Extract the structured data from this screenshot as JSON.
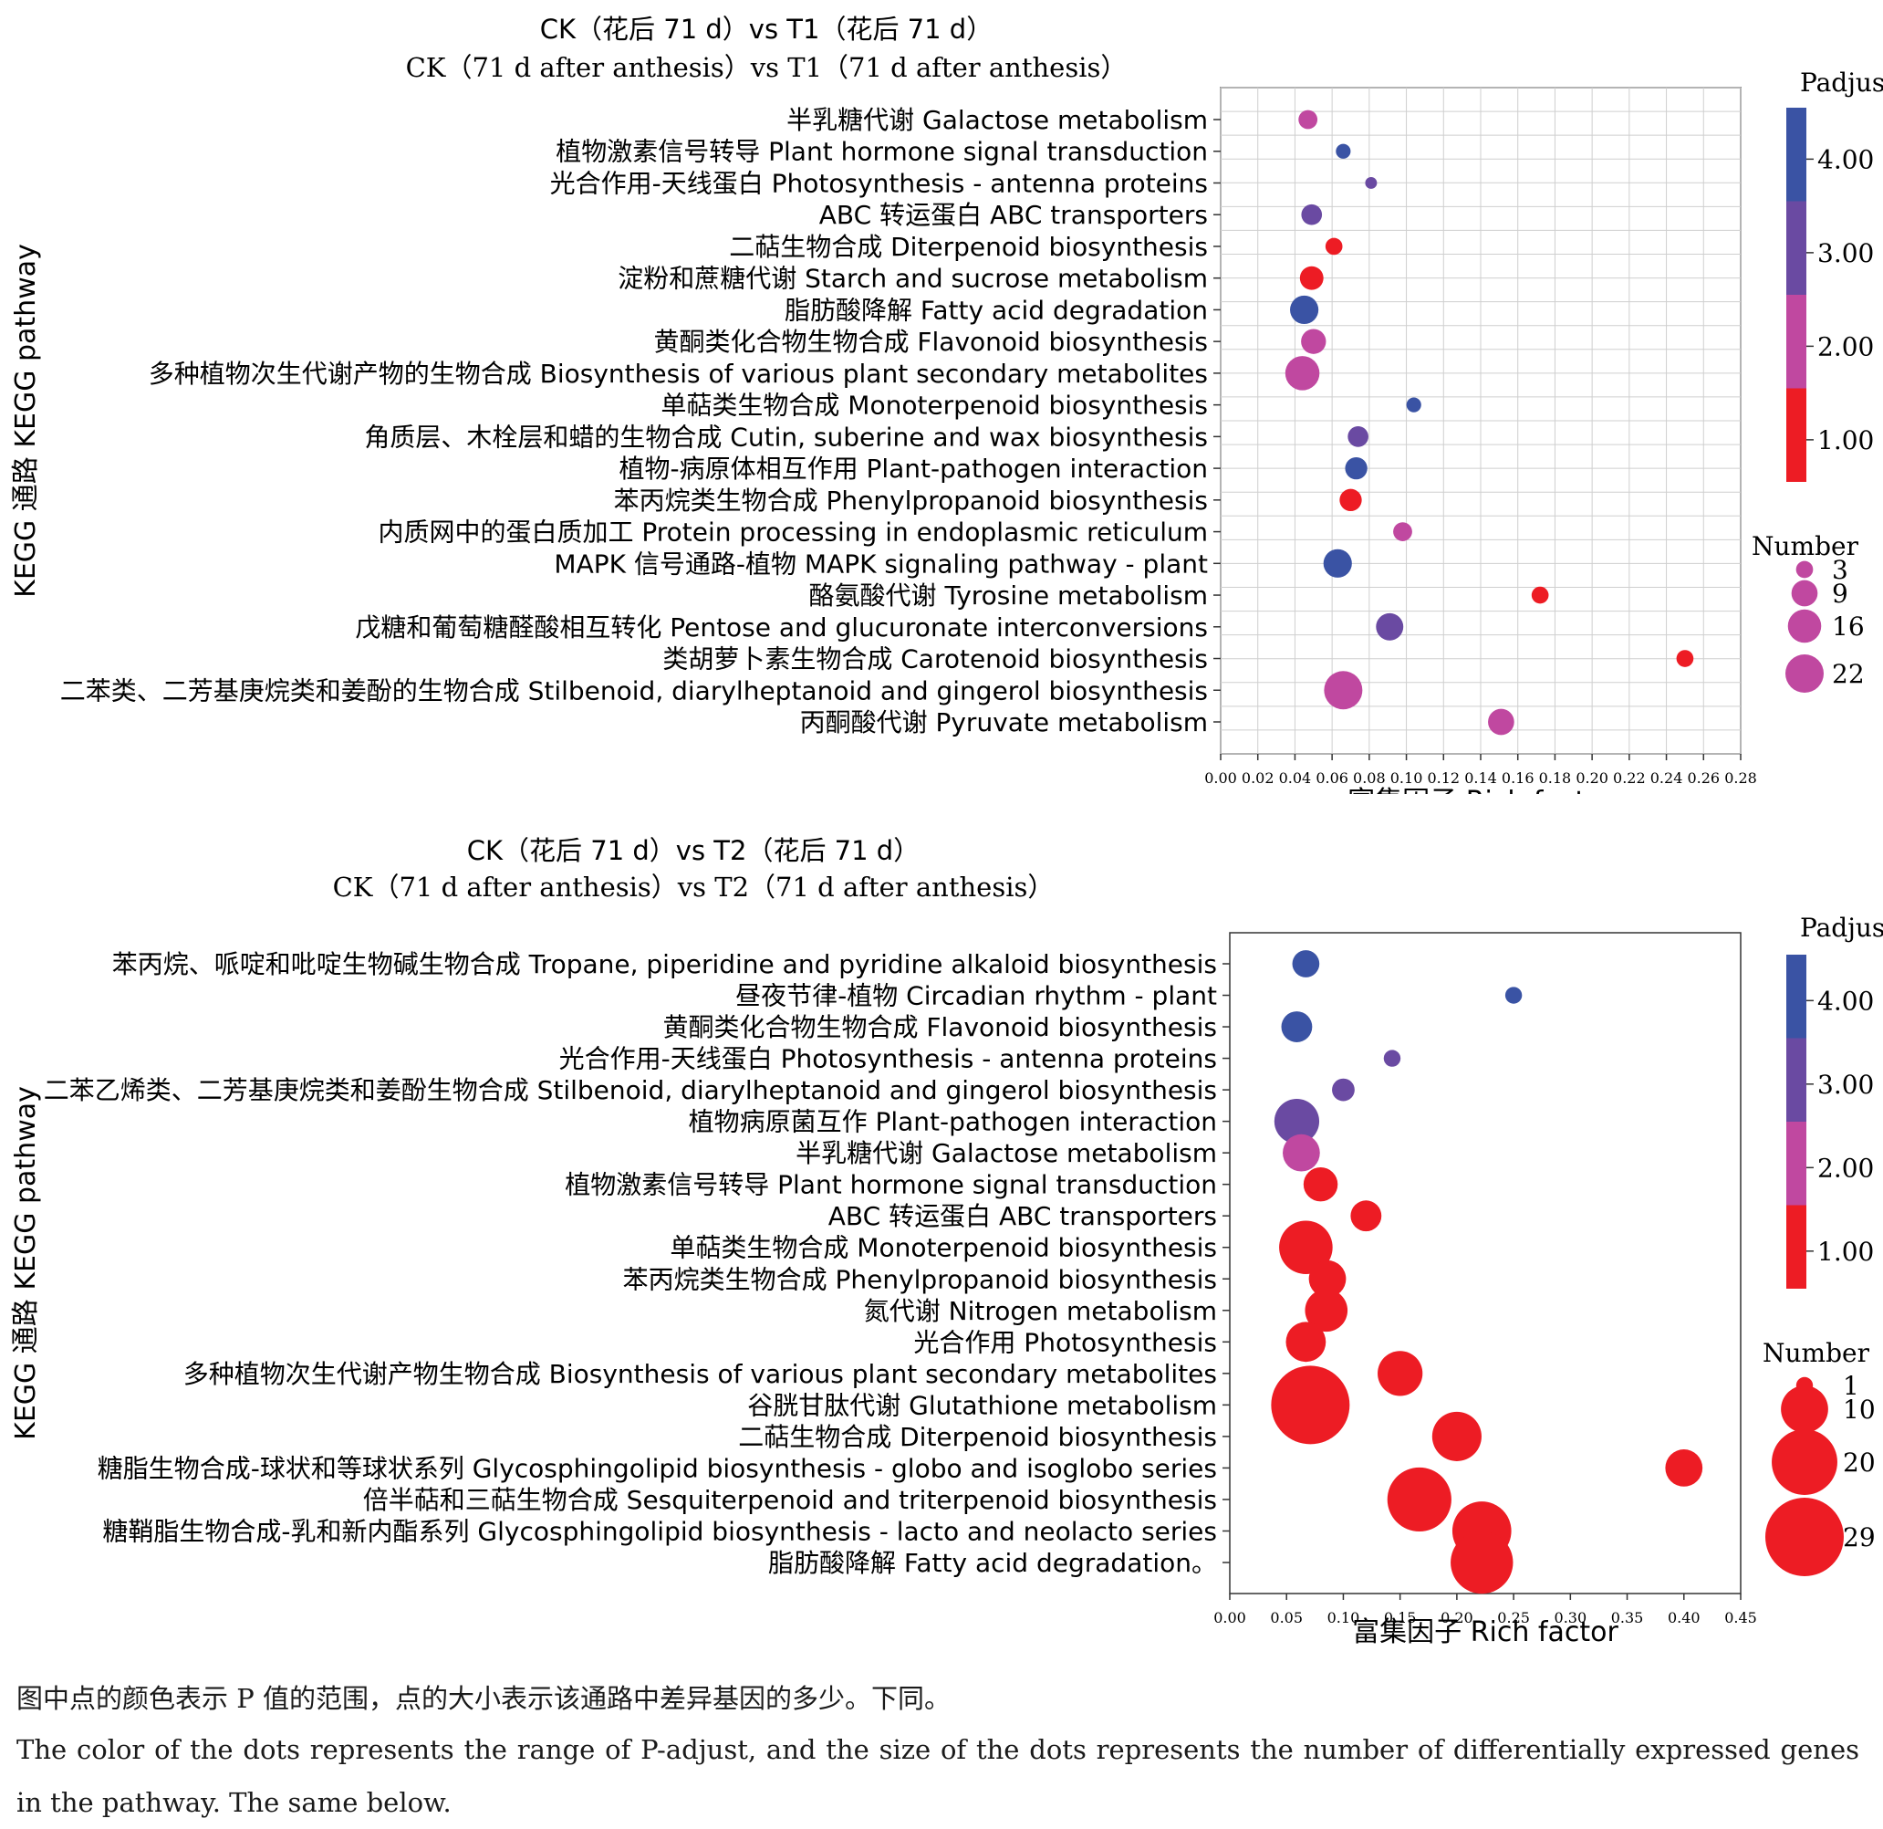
{
  "colors": {
    "padj_high": "#3a53a4",
    "padj_mid_high": "#6a4aa2",
    "padj_mid_low": "#c048a0",
    "padj_low": "#ed1c24",
    "grid": "#cfcfcf",
    "axis": "#333333"
  },
  "chart_data": [
    {
      "type": "scatter",
      "subtype": "bubble",
      "title_zh": "CK（花后 71 d）vs T1（花后 71 d）",
      "title_en": "CK（71 d after anthesis）vs T1（71 d after anthesis）",
      "ylabel": "KEGG 通路 KEGG pathway",
      "xlabel": "富集因子 Rich factor",
      "xlim": [
        0,
        0.28
      ],
      "xticks": [
        "0.00",
        "0.02",
        "0.04",
        "0.06",
        "0.08",
        "0.10",
        "0.12",
        "0.14",
        "0.16",
        "0.18",
        "0.20",
        "0.22",
        "0.24",
        "0.26",
        "0.28"
      ],
      "grid": true,
      "color_legend": {
        "title": "Padjust",
        "ticks": [
          "4.00",
          "3.00",
          "2.00",
          "1.00"
        ]
      },
      "size_legend": {
        "title": "Number",
        "values": [
          "3",
          "9",
          "16",
          "22"
        ]
      },
      "points": [
        {
          "pathway": "半乳糖代谢 Galactose metabolism",
          "x": 0.047,
          "number": 4,
          "padj": 2.3
        },
        {
          "pathway": "植物激素信号转导 Plant hormone signal transduction",
          "x": 0.066,
          "number": 2,
          "padj": 3.9
        },
        {
          "pathway": "光合作用-天线蛋白 Photosynthesis - antenna proteins",
          "x": 0.081,
          "number": 1,
          "padj": 3.4
        },
        {
          "pathway": "ABC 转运蛋白 ABC transporters",
          "x": 0.049,
          "number": 5,
          "padj": 3.3
        },
        {
          "pathway": "二萜生物合成 Diterpenoid biosynthesis",
          "x": 0.061,
          "number": 3,
          "padj": 1.0
        },
        {
          "pathway": "淀粉和蔗糖代谢 Starch and sucrose metabolism",
          "x": 0.049,
          "number": 7,
          "padj": 1.0
        },
        {
          "pathway": "脂肪酸降解 Fatty acid degradation",
          "x": 0.045,
          "number": 11,
          "padj": 4.3
        },
        {
          "pathway": "黄酮类化合物生物合成 Flavonoid biosynthesis",
          "x": 0.05,
          "number": 8,
          "padj": 2.2
        },
        {
          "pathway": "多种植物次生代谢产物的生物合成 Biosynthesis of various plant secondary metabolites",
          "x": 0.044,
          "number": 17,
          "padj": 2.2
        },
        {
          "pathway": "单萜类生物合成 Monoterpenoid biosynthesis",
          "x": 0.104,
          "number": 2,
          "padj": 3.9
        },
        {
          "pathway": "角质层、木栓层和蜡的生物合成 Cutin, suberine and wax biosynthesis",
          "x": 0.074,
          "number": 5,
          "padj": 3.1
        },
        {
          "pathway": "植物-病原体相互作用 Plant-pathogen interaction",
          "x": 0.073,
          "number": 6,
          "padj": 4.1
        },
        {
          "pathway": "苯丙烷类生物合成 Phenylpropanoid biosynthesis",
          "x": 0.07,
          "number": 6,
          "padj": 1.0
        },
        {
          "pathway": "内质网中的蛋白质加工 Protein processing in endoplasmic reticulum",
          "x": 0.098,
          "number": 4,
          "padj": 2.1
        },
        {
          "pathway": "MAPK 信号通路-植物 MAPK signaling pathway - plant",
          "x": 0.063,
          "number": 11,
          "padj": 4.2
        },
        {
          "pathway": "酪氨酸代谢 Tyrosine metabolism",
          "x": 0.172,
          "number": 3,
          "padj": 1.0
        },
        {
          "pathway": "戊糖和葡萄糖醛酸相互转化 Pentose and glucuronate interconversions",
          "x": 0.091,
          "number": 10,
          "padj": 3.3
        },
        {
          "pathway": "类胡萝卜素生物合成 Carotenoid biosynthesis",
          "x": 0.25,
          "number": 3,
          "padj": 1.0
        },
        {
          "pathway": "二苯类、二芳基庚烷类和姜酚的生物合成 Stilbenoid, diarylheptanoid and gingerol biosynthesis",
          "x": 0.066,
          "number": 22,
          "padj": 2.3
        },
        {
          "pathway": "丙酮酸代谢 Pyruvate metabolism",
          "x": 0.151,
          "number": 9,
          "padj": 2.2
        }
      ]
    },
    {
      "type": "scatter",
      "subtype": "bubble",
      "title_zh": "CK（花后 71 d）vs T2（花后 71 d）",
      "title_en": "CK（71 d after anthesis）vs T2（71 d after anthesis）",
      "ylabel": "KEGG 通路 KEGG pathway",
      "xlabel": "富集因子 Rich factor",
      "xlim": [
        0,
        0.45
      ],
      "xticks": [
        "0.00",
        "0.05",
        "0.10",
        "0.15",
        "0.20",
        "0.25",
        "0.30",
        "0.35",
        "0.40",
        "0.45"
      ],
      "grid": false,
      "color_legend": {
        "title": "Padjust",
        "ticks": [
          "4.00",
          "3.00",
          "2.00",
          "1.00"
        ]
      },
      "size_legend": {
        "title": "Number",
        "values": [
          "1",
          "10",
          "20",
          "29"
        ]
      },
      "points": [
        {
          "pathway": "苯丙烷、哌啶和吡啶生物碱生物合成 Tropane, piperidine and pyridine alkaloid biosynthesis",
          "x": 0.067,
          "number": 3,
          "padj": 4.3
        },
        {
          "pathway": "昼夜节律-植物 Circadian rhythm - plant",
          "x": 0.25,
          "number": 1,
          "padj": 3.8
        },
        {
          "pathway": "黄酮类化合物生物合成 Flavonoid biosynthesis",
          "x": 0.059,
          "number": 4,
          "padj": 4.3
        },
        {
          "pathway": "光合作用-天线蛋白 Photosynthesis - antenna proteins",
          "x": 0.143,
          "number": 1,
          "padj": 3.3
        },
        {
          "pathway": "二苯乙烯类、二芳基庚烷类和姜酚生物合成 Stilbenoid, diarylheptanoid and gingerol biosynthesis",
          "x": 0.1,
          "number": 2,
          "padj": 3.1
        },
        {
          "pathway": "植物病原菌互作 Plant-pathogen interaction",
          "x": 0.059,
          "number": 9,
          "padj": 3.3
        },
        {
          "pathway": "半乳糖代谢 Galactose metabolism",
          "x": 0.063,
          "number": 6,
          "padj": 2.3
        },
        {
          "pathway": "植物激素信号转导 Plant hormone signal transduction",
          "x": 0.08,
          "number": 5,
          "padj": 1.0
        },
        {
          "pathway": "ABC 转运蛋白 ABC transporters",
          "x": 0.12,
          "number": 4,
          "padj": 1.0
        },
        {
          "pathway": "单萜类生物合成 Monoterpenoid biosynthesis",
          "x": 0.067,
          "number": 13,
          "padj": 1.0
        },
        {
          "pathway": "苯丙烷类生物合成 Phenylpropanoid biosynthesis",
          "x": 0.086,
          "number": 6,
          "padj": 1.0
        },
        {
          "pathway": "氮代谢 Nitrogen metabolism",
          "x": 0.085,
          "number": 8,
          "padj": 1.0
        },
        {
          "pathway": "光合作用 Photosynthesis",
          "x": 0.067,
          "number": 7,
          "padj": 1.0
        },
        {
          "pathway": "多种植物次生代谢产物生物合成 Biosynthesis of various plant secondary metabolites",
          "x": 0.15,
          "number": 9,
          "padj": 1.0
        },
        {
          "pathway": "谷胱甘肽代谢 Glutathione metabolism",
          "x": 0.071,
          "number": 29,
          "padj": 1.0
        },
        {
          "pathway": "二萜生物合成 Diterpenoid biosynthesis",
          "x": 0.2,
          "number": 11,
          "padj": 1.0
        },
        {
          "pathway": "糖脂生物合成-球状和等球状系列 Glycosphingolipid biosynthesis - globo and isoglobo series",
          "x": 0.4,
          "number": 6,
          "padj": 1.0
        },
        {
          "pathway": "倍半萜和三萜生物合成 Sesquiterpenoid and triterpenoid biosynthesis",
          "x": 0.167,
          "number": 19,
          "padj": 1.0
        },
        {
          "pathway": "糖鞘脂生物合成-乳和新内酯系列 Glycosphingolipid biosynthesis - lacto and neolacto series",
          "x": 0.222,
          "number": 16,
          "padj": 1.0
        },
        {
          "pathway": "脂肪酸降解 Fatty acid degradation。",
          "x": 0.222,
          "number": 18,
          "padj": 1.0
        }
      ]
    }
  ],
  "caption": {
    "zh": "图中点的颜色表示 P 值的范围，点的大小表示该通路中差异基因的多少。下同。",
    "en": "The color of the dots represents the range of P-adjust, and the size of the dots represents the number of differentially expressed genes in the pathway. The same below."
  }
}
